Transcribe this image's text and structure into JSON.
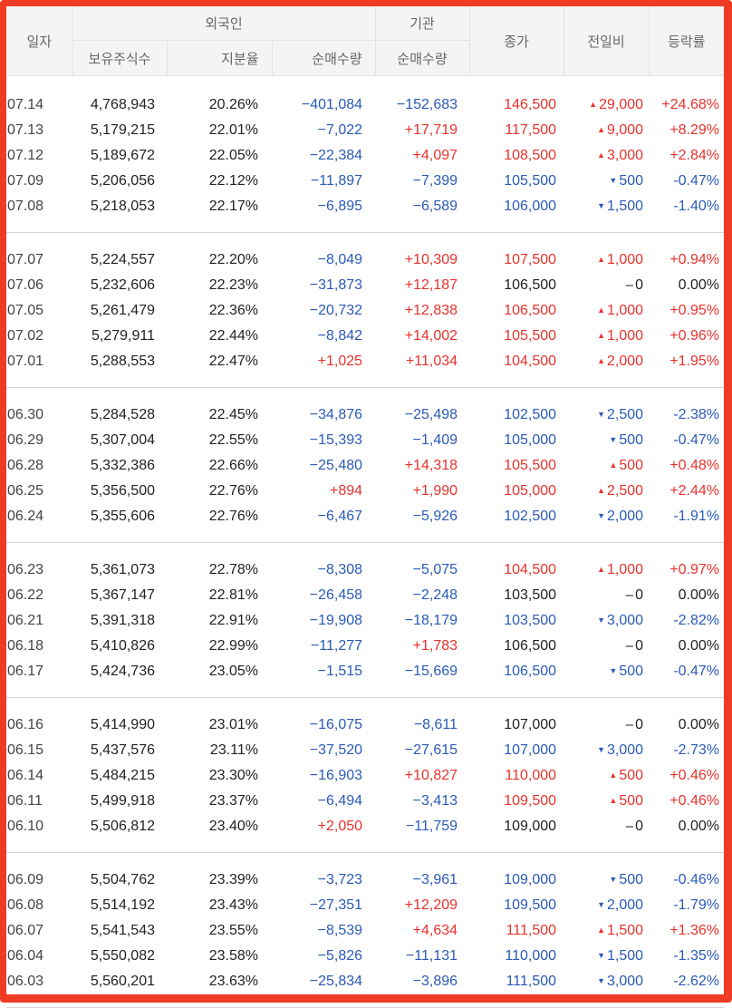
{
  "header": {
    "date": "일자",
    "foreign": "외국인",
    "institution": "기관",
    "close": "종가",
    "change": "전일비",
    "rate": "등락률",
    "held_shares": "보유주식수",
    "holding_ratio": "지분율",
    "foreign_net": "순매수량",
    "inst_net": "순매수량"
  },
  "colors": {
    "up": "#e8322c",
    "down": "#2a5ab7",
    "border": "#ef3b24"
  },
  "icons": {
    "up": "triangle-up-icon",
    "down": "triangle-down-icon"
  },
  "groups": [
    [
      {
        "date": "07.14",
        "held": "4,768,943",
        "ratio": "20.26%",
        "fnet": "−401,084",
        "inet": "−152,683",
        "close": "146,500",
        "dir": "up",
        "chg": "29,000",
        "rate": "+24.68%"
      },
      {
        "date": "07.13",
        "held": "5,179,215",
        "ratio": "22.01%",
        "fnet": "−7,022",
        "inet": "+17,719",
        "close": "117,500",
        "dir": "up",
        "chg": "9,000",
        "rate": "+8.29%"
      },
      {
        "date": "07.12",
        "held": "5,189,672",
        "ratio": "22.05%",
        "fnet": "−22,384",
        "inet": "+4,097",
        "close": "108,500",
        "dir": "up",
        "chg": "3,000",
        "rate": "+2.84%"
      },
      {
        "date": "07.09",
        "held": "5,206,056",
        "ratio": "22.12%",
        "fnet": "−11,897",
        "inet": "−7,399",
        "close": "105,500",
        "dir": "down",
        "chg": "500",
        "rate": "-0.47%"
      },
      {
        "date": "07.08",
        "held": "5,218,053",
        "ratio": "22.17%",
        "fnet": "−6,895",
        "inet": "−6,589",
        "close": "106,000",
        "dir": "down",
        "chg": "1,500",
        "rate": "-1.40%"
      }
    ],
    [
      {
        "date": "07.07",
        "held": "5,224,557",
        "ratio": "22.20%",
        "fnet": "−8,049",
        "inet": "+10,309",
        "close": "107,500",
        "dir": "up",
        "chg": "1,000",
        "rate": "+0.94%"
      },
      {
        "date": "07.06",
        "held": "5,232,606",
        "ratio": "22.23%",
        "fnet": "−31,873",
        "inet": "+12,187",
        "close": "106,500",
        "dir": "flat",
        "chg": "0",
        "rate": "0.00%"
      },
      {
        "date": "07.05",
        "held": "5,261,479",
        "ratio": "22.36%",
        "fnet": "−20,732",
        "inet": "+12,838",
        "close": "106,500",
        "dir": "up",
        "chg": "1,000",
        "rate": "+0.95%"
      },
      {
        "date": "07.02",
        "held": "5,279,911",
        "ratio": "22.44%",
        "fnet": "−8,842",
        "inet": "+14,002",
        "close": "105,500",
        "dir": "up",
        "chg": "1,000",
        "rate": "+0.96%"
      },
      {
        "date": "07.01",
        "held": "5,288,553",
        "ratio": "22.47%",
        "fnet": "+1,025",
        "inet": "+11,034",
        "close": "104,500",
        "dir": "up",
        "chg": "2,000",
        "rate": "+1.95%"
      }
    ],
    [
      {
        "date": "06.30",
        "held": "5,284,528",
        "ratio": "22.45%",
        "fnet": "−34,876",
        "inet": "−25,498",
        "close": "102,500",
        "dir": "down",
        "chg": "2,500",
        "rate": "-2.38%"
      },
      {
        "date": "06.29",
        "held": "5,307,004",
        "ratio": "22.55%",
        "fnet": "−15,393",
        "inet": "−1,409",
        "close": "105,000",
        "dir": "down",
        "chg": "500",
        "rate": "-0.47%"
      },
      {
        "date": "06.28",
        "held": "5,332,386",
        "ratio": "22.66%",
        "fnet": "−25,480",
        "inet": "+14,318",
        "close": "105,500",
        "dir": "up",
        "chg": "500",
        "rate": "+0.48%"
      },
      {
        "date": "06.25",
        "held": "5,356,500",
        "ratio": "22.76%",
        "fnet": "+894",
        "inet": "+1,990",
        "close": "105,000",
        "dir": "up",
        "chg": "2,500",
        "rate": "+2.44%"
      },
      {
        "date": "06.24",
        "held": "5,355,606",
        "ratio": "22.76%",
        "fnet": "−6,467",
        "inet": "−5,926",
        "close": "102,500",
        "dir": "down",
        "chg": "2,000",
        "rate": "-1.91%"
      }
    ],
    [
      {
        "date": "06.23",
        "held": "5,361,073",
        "ratio": "22.78%",
        "fnet": "−8,308",
        "inet": "−5,075",
        "close": "104,500",
        "dir": "up",
        "chg": "1,000",
        "rate": "+0.97%"
      },
      {
        "date": "06.22",
        "held": "5,367,147",
        "ratio": "22.81%",
        "fnet": "−26,458",
        "inet": "−2,248",
        "close": "103,500",
        "dir": "flat",
        "chg": "0",
        "rate": "0.00%"
      },
      {
        "date": "06.21",
        "held": "5,391,318",
        "ratio": "22.91%",
        "fnet": "−19,908",
        "inet": "−18,179",
        "close": "103,500",
        "dir": "down",
        "chg": "3,000",
        "rate": "-2.82%"
      },
      {
        "date": "06.18",
        "held": "5,410,826",
        "ratio": "22.99%",
        "fnet": "−11,277",
        "inet": "+1,783",
        "close": "106,500",
        "dir": "flat",
        "chg": "0",
        "rate": "0.00%"
      },
      {
        "date": "06.17",
        "held": "5,424,736",
        "ratio": "23.05%",
        "fnet": "−1,515",
        "inet": "−15,669",
        "close": "106,500",
        "dir": "down",
        "chg": "500",
        "rate": "-0.47%"
      }
    ],
    [
      {
        "date": "06.16",
        "held": "5,414,990",
        "ratio": "23.01%",
        "fnet": "−16,075",
        "inet": "−8,611",
        "close": "107,000",
        "dir": "flat",
        "chg": "0",
        "rate": "0.00%"
      },
      {
        "date": "06.15",
        "held": "5,437,576",
        "ratio": "23.11%",
        "fnet": "−37,520",
        "inet": "−27,615",
        "close": "107,000",
        "dir": "down",
        "chg": "3,000",
        "rate": "-2.73%"
      },
      {
        "date": "06.14",
        "held": "5,484,215",
        "ratio": "23.30%",
        "fnet": "−16,903",
        "inet": "+10,827",
        "close": "110,000",
        "dir": "up",
        "chg": "500",
        "rate": "+0.46%"
      },
      {
        "date": "06.11",
        "held": "5,499,918",
        "ratio": "23.37%",
        "fnet": "−6,494",
        "inet": "−3,413",
        "close": "109,500",
        "dir": "up",
        "chg": "500",
        "rate": "+0.46%"
      },
      {
        "date": "06.10",
        "held": "5,506,812",
        "ratio": "23.40%",
        "fnet": "+2,050",
        "inet": "−11,759",
        "close": "109,000",
        "dir": "flat",
        "chg": "0",
        "rate": "0.00%"
      }
    ],
    [
      {
        "date": "06.09",
        "held": "5,504,762",
        "ratio": "23.39%",
        "fnet": "−3,723",
        "inet": "−3,961",
        "close": "109,000",
        "dir": "down",
        "chg": "500",
        "rate": "-0.46%"
      },
      {
        "date": "06.08",
        "held": "5,514,192",
        "ratio": "23.43%",
        "fnet": "−27,351",
        "inet": "+12,209",
        "close": "109,500",
        "dir": "down",
        "chg": "2,000",
        "rate": "-1.79%"
      },
      {
        "date": "06.07",
        "held": "5,541,543",
        "ratio": "23.55%",
        "fnet": "−8,539",
        "inet": "+4,634",
        "close": "111,500",
        "dir": "up",
        "chg": "1,500",
        "rate": "+1.36%"
      },
      {
        "date": "06.04",
        "held": "5,550,082",
        "ratio": "23.58%",
        "fnet": "−5,826",
        "inet": "−11,131",
        "close": "110,000",
        "dir": "down",
        "chg": "1,500",
        "rate": "-1.35%"
      },
      {
        "date": "06.03",
        "held": "5,560,201",
        "ratio": "23.63%",
        "fnet": "−25,834",
        "inet": "−3,896",
        "close": "111,500",
        "dir": "down",
        "chg": "3,000",
        "rate": "-2.62%"
      }
    ]
  ]
}
